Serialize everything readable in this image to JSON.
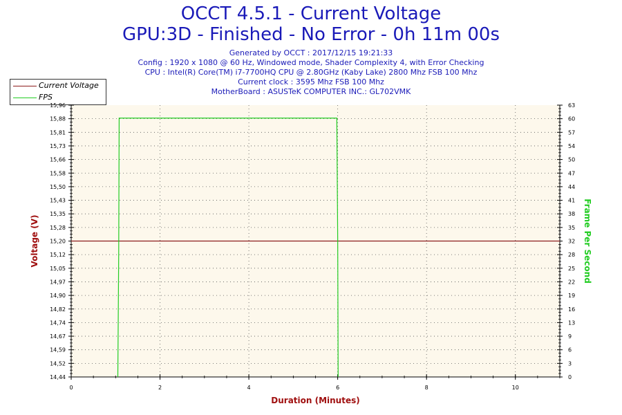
{
  "header": {
    "title_line1": "OCCT 4.5.1 - Current Voltage",
    "title_line2": "GPU:3D - Finished - No Error - 0h 11m 00s",
    "info_lines": [
      "Generated by OCCT : 2017/12/15 19:21:33",
      "Config : 1920 x 1080 @ 60 Hz, Windowed mode, Shader Complexity 4, with Error Checking",
      "CPU : Intel(R) Core(TM) i7-7700HQ CPU @ 2.80GHz (Kaby Lake) 2800 Mhz FSB 100 Mhz",
      "Current clock : 3595 Mhz FSB 100 Mhz",
      "MotherBoard : ASUSTeK COMPUTER INC.: GL702VMK"
    ]
  },
  "colors": {
    "title": "#1a1ab8",
    "voltage": "#8b1a1a",
    "fps": "#22cc22",
    "plot_bg": "#fdf8ec",
    "axis_title_x": "#a01010",
    "axis_title_y_left": "#a01010",
    "axis_title_y_right": "#22cc22"
  },
  "chart_data": {
    "type": "line",
    "title": "OCCT 4.5.1 - Current Voltage",
    "xlabel": "Duration (Minutes)",
    "ylabel": "Voltage (V)",
    "y2label": "Frame Per Second",
    "xlim": [
      0,
      11
    ],
    "ylim": [
      14.44,
      15.96
    ],
    "y2lim": [
      0,
      63
    ],
    "x_ticks": [
      "0",
      "2",
      "4",
      "6",
      "8",
      "10"
    ],
    "x_tick_values": [
      0,
      2,
      4,
      6,
      8,
      10
    ],
    "y_ticks": [
      "15,96",
      "15,88",
      "15,81",
      "15,73",
      "15,66",
      "15,58",
      "15,50",
      "15,43",
      "15,35",
      "15,28",
      "15,20",
      "15,12",
      "15,05",
      "14,97",
      "14,90",
      "14,82",
      "14,74",
      "14,67",
      "14,59",
      "14,52",
      "14,44"
    ],
    "y2_ticks": [
      "63",
      "60",
      "57",
      "54",
      "50",
      "47",
      "44",
      "41",
      "38",
      "35",
      "32",
      "28",
      "25",
      "22",
      "19",
      "16",
      "13",
      "9",
      "6",
      "3",
      "0"
    ],
    "grid": true,
    "legend_position": "top-left",
    "legend": [
      "Current Voltage",
      "FPS"
    ],
    "series": [
      {
        "name": "Current Voltage",
        "axis": "left",
        "x": [
          0,
          11
        ],
        "values": [
          15.2,
          15.2
        ]
      },
      {
        "name": "FPS",
        "axis": "right",
        "x": [
          1.05,
          1.07,
          1.08,
          5.98,
          6.0,
          6.01
        ],
        "values": [
          0,
          29,
          60,
          60,
          32,
          0
        ]
      }
    ]
  }
}
